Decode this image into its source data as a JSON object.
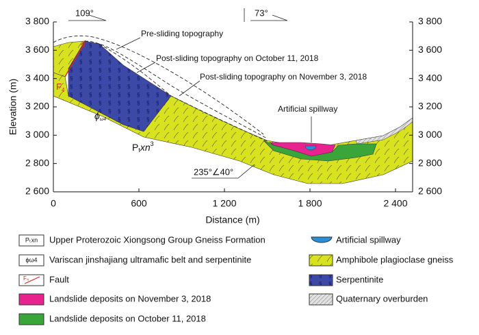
{
  "axes": {
    "y_label": "Elevation (m)",
    "x_label": "Distance (m)",
    "xlim": [
      0,
      2520
    ],
    "ylim": [
      2600,
      3800
    ],
    "xticks": [
      0,
      600,
      {
        "value": 1200,
        "label": "1 200"
      },
      {
        "value": 1800,
        "label": "1 800"
      },
      {
        "value": 2400,
        "label": "2 400"
      }
    ],
    "yticks": [
      {
        "value": 2600,
        "label": "2 600"
      },
      {
        "value": 2800,
        "label": "2 800"
      },
      {
        "value": 3000,
        "label": "3 000"
      },
      {
        "value": 3200,
        "label": "3 200"
      },
      {
        "value": 3400,
        "label": "3 400"
      },
      {
        "value": 3600,
        "label": "3 600"
      },
      {
        "value": 3800,
        "label": "3 800"
      }
    ]
  },
  "annotations": {
    "dip_left": "109°",
    "dip_right": "73°",
    "pre_sliding": "Pre-sliding topography",
    "post_oct": "Post-sliding topography on October 11, 2018",
    "post_nov": "Post-sliding topography on November 3, 2018",
    "spillway": "Artificial spillway",
    "fault": {
      "main": "F",
      "sub": "4"
    },
    "phi": {
      "main": "ϕ",
      "sub": "ω4"
    },
    "ptxn": {
      "main": "P",
      "sub": "t",
      "rest": "xn",
      "sup": "3"
    },
    "attitude": "235°∠40°"
  },
  "legend": {
    "items": [
      {
        "icon_label": "Pₜxn",
        "label": "Upper Proterozoic Xiongsong Group Gneiss Formation"
      },
      {
        "icon_label": "ϕω4",
        "label": "Variscan jinshajiang ultramafic belt and serpentinite"
      },
      {
        "icon_label": "F₄",
        "label": "Fault"
      },
      {
        "label": "Landslide deposits on November 3, 2018"
      },
      {
        "label": "Landslide deposits on October 11, 2018"
      },
      {
        "label": "Artificial spillway"
      },
      {
        "label": "Amphibole plagioclase gneiss"
      },
      {
        "label": "Serpentinite"
      },
      {
        "label": "Quaternary overburden"
      }
    ]
  }
}
